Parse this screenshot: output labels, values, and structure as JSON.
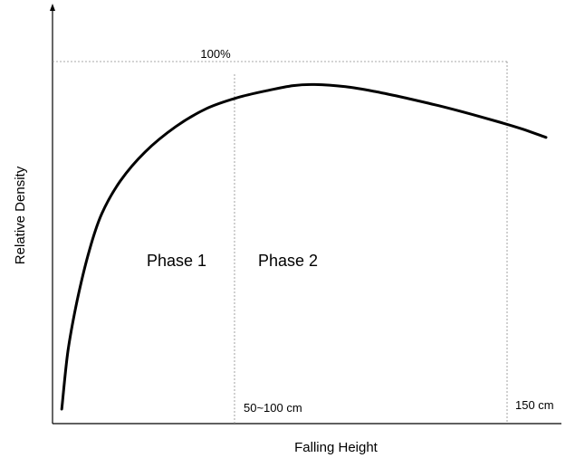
{
  "chart_data": {
    "type": "line",
    "title": "",
    "xlabel": "Falling Height",
    "ylabel": "Relative Density",
    "grid": false,
    "legend": null,
    "annotations": {
      "reference_line_label": "100%",
      "phase_1_label": "Phase 1",
      "phase_2_label": "Phase 2",
      "boundary_1_label": "50~100 cm",
      "boundary_2_label": "150 cm"
    },
    "reference_level_pct": 100,
    "boundaries_cm": [
      75,
      150
    ],
    "xlim": [
      0,
      165
    ],
    "ylim": [
      0,
      100
    ],
    "series": [
      {
        "color": "#000000",
        "points": [
          [
            3,
            4
          ],
          [
            5,
            20
          ],
          [
            8,
            34
          ],
          [
            12,
            48
          ],
          [
            16,
            58
          ],
          [
            22,
            67
          ],
          [
            30,
            75
          ],
          [
            40,
            82
          ],
          [
            50,
            87
          ],
          [
            60,
            90
          ],
          [
            70,
            92
          ],
          [
            78,
            93.3
          ],
          [
            85,
            93.6
          ],
          [
            95,
            93
          ],
          [
            105,
            91.6
          ],
          [
            115,
            89.8
          ],
          [
            125,
            87.8
          ],
          [
            135,
            85.6
          ],
          [
            145,
            83.2
          ],
          [
            152,
            81.4
          ],
          [
            160,
            79
          ]
        ]
      }
    ],
    "colors": {
      "curve": "#000000",
      "axis": "#000000",
      "guide": "#8c8c8c"
    }
  }
}
